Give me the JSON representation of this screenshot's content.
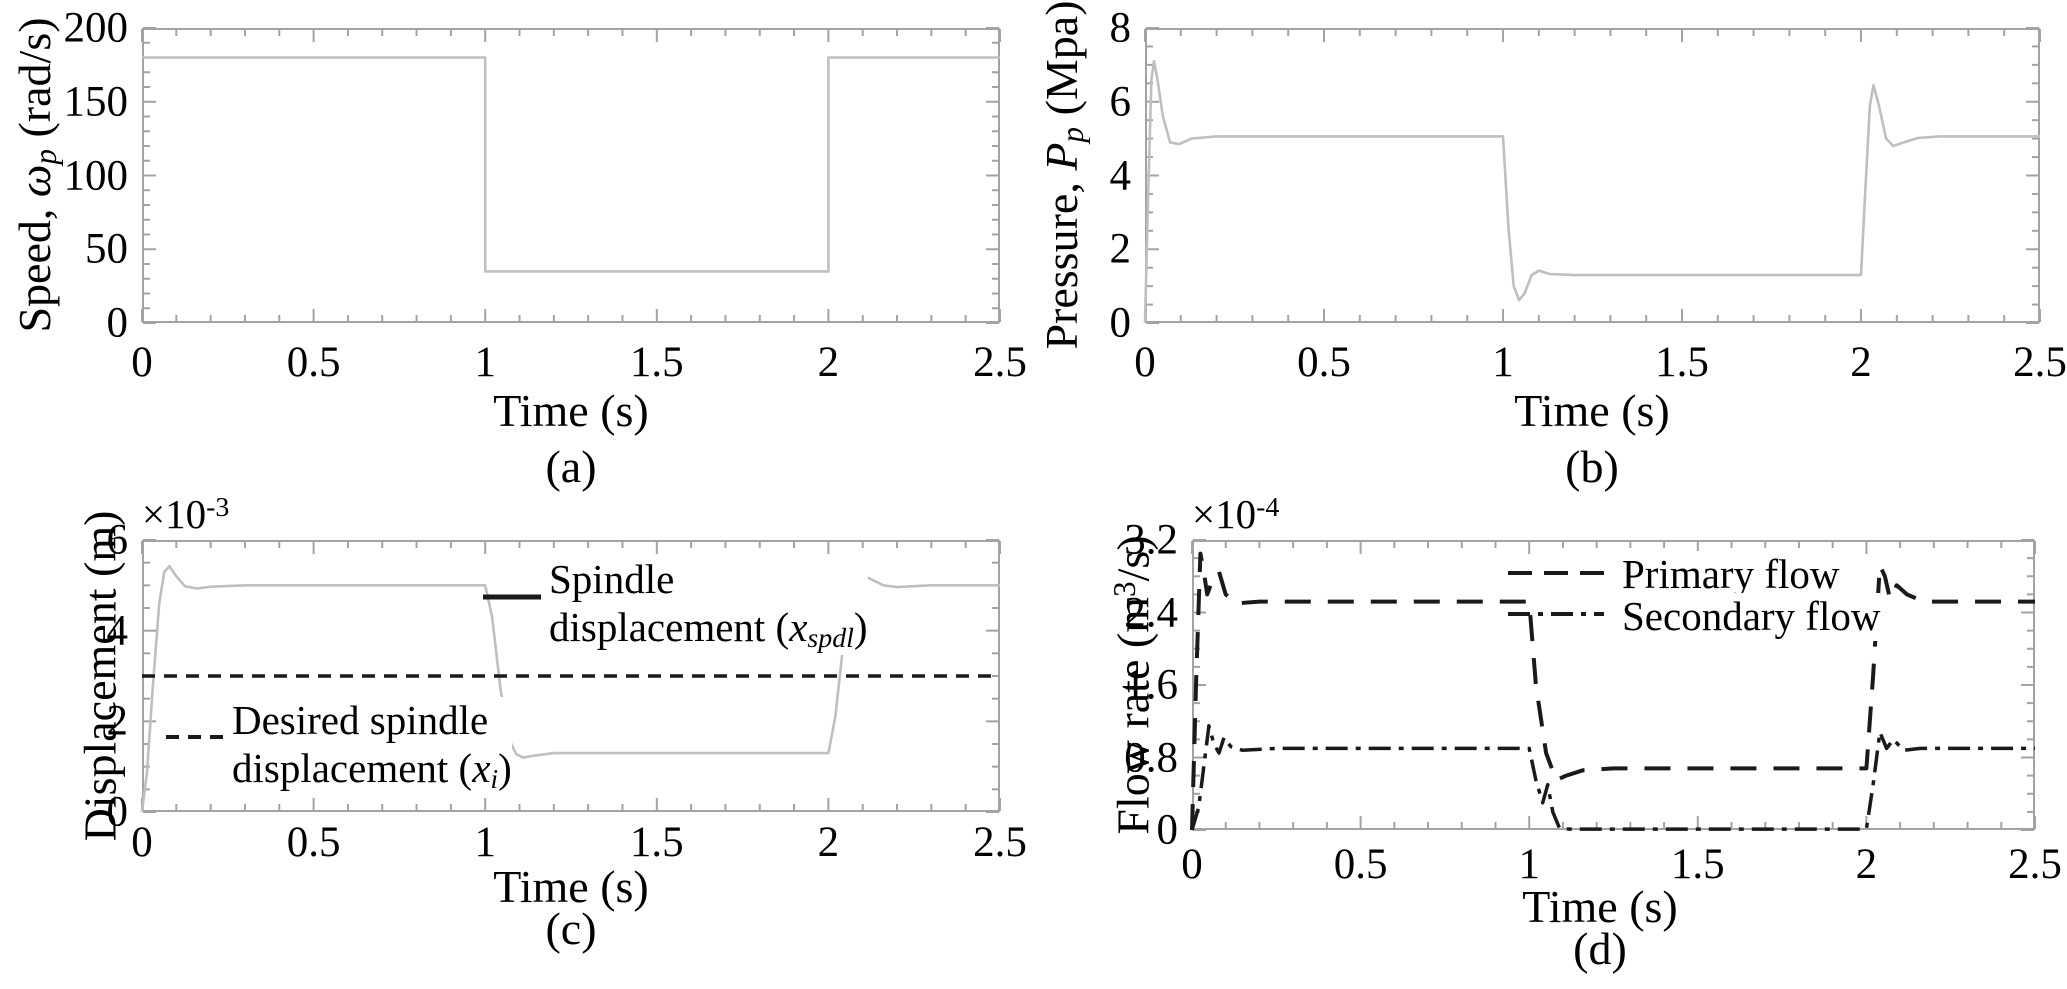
{
  "figure": {
    "background": "#ffffff",
    "frame_color": "#a3a3a3",
    "gray_line_color": "#bfbfbf",
    "black_line_color": "#1a1a1a",
    "text_color": "#000000"
  },
  "chart_data": [
    {
      "id": "a",
      "type": "line",
      "caption": "(a)",
      "xlabel": "Time (s)",
      "ylabel_parts": [
        {
          "t": "Speed, "
        },
        {
          "t": "ω",
          "i": 1
        },
        {
          "t": "p",
          "i": 1,
          "sub": 1
        },
        {
          "t": " (rad/s)"
        }
      ],
      "xlim": [
        0,
        2.5
      ],
      "ylim": [
        0,
        200
      ],
      "xticks": {
        "values": [
          0,
          0.5,
          1,
          1.5,
          2,
          2.5
        ],
        "labels": [
          "0",
          "0.5",
          "1",
          "1.5",
          "2",
          "2.5"
        ],
        "minor_step": 0.1
      },
      "yticks": {
        "values": [
          0,
          50,
          100,
          150,
          200
        ],
        "labels": [
          "0",
          "50",
          "100",
          "150",
          "200"
        ],
        "minor_step": 10
      },
      "grid": false,
      "series": [
        {
          "name": "pump_speed",
          "line": "solid",
          "color": "gray",
          "width": 2.6,
          "points": [
            [
              0,
              180
            ],
            [
              1,
              180
            ],
            [
              1,
              35
            ],
            [
              2,
              35
            ],
            [
              2,
              180
            ],
            [
              2.5,
              180
            ]
          ]
        }
      ]
    },
    {
      "id": "b",
      "type": "line",
      "caption": "(b)",
      "xlabel": "Time (s)",
      "ylabel_parts": [
        {
          "t": "Pressure, "
        },
        {
          "t": "P",
          "i": 1
        },
        {
          "t": "p",
          "i": 1,
          "sub": 1
        },
        {
          "t": " (Mpa)"
        }
      ],
      "xlim": [
        0,
        2.5
      ],
      "ylim": [
        0,
        8
      ],
      "xticks": {
        "values": [
          0,
          0.5,
          1,
          1.5,
          2,
          2.5
        ],
        "labels": [
          "0",
          "0.5",
          "1",
          "1.5",
          "2",
          "2.5"
        ],
        "minor_step": 0.1
      },
      "yticks": {
        "values": [
          0,
          2,
          4,
          6,
          8
        ],
        "labels": [
          "0",
          "2",
          "4",
          "6",
          "8"
        ],
        "minor_step": 0.5
      },
      "grid": false,
      "series": [
        {
          "name": "pump_pressure",
          "line": "solid",
          "color": "gray",
          "width": 2.6,
          "points": [
            [
              0,
              0
            ],
            [
              0.008,
              3.2
            ],
            [
              0.018,
              6.6
            ],
            [
              0.025,
              7.1
            ],
            [
              0.035,
              6.6
            ],
            [
              0.05,
              5.6
            ],
            [
              0.07,
              4.9
            ],
            [
              0.095,
              4.85
            ],
            [
              0.13,
              5.0
            ],
            [
              0.2,
              5.06
            ],
            [
              1.0,
              5.06
            ],
            [
              1.015,
              2.6
            ],
            [
              1.03,
              1.0
            ],
            [
              1.045,
              0.62
            ],
            [
              1.06,
              0.8
            ],
            [
              1.08,
              1.3
            ],
            [
              1.1,
              1.42
            ],
            [
              1.13,
              1.33
            ],
            [
              1.2,
              1.3
            ],
            [
              2.0,
              1.3
            ],
            [
              2.012,
              3.6
            ],
            [
              2.025,
              5.9
            ],
            [
              2.035,
              6.45
            ],
            [
              2.05,
              5.9
            ],
            [
              2.07,
              5.0
            ],
            [
              2.09,
              4.8
            ],
            [
              2.12,
              4.9
            ],
            [
              2.16,
              5.02
            ],
            [
              2.22,
              5.06
            ],
            [
              2.5,
              5.06
            ]
          ]
        }
      ]
    },
    {
      "id": "c",
      "type": "line",
      "caption": "(c)",
      "xlabel": "Time (s)",
      "ylabel_parts": [
        {
          "t": "Displacement (m)"
        }
      ],
      "scale_parts": [
        {
          "t": "×10"
        },
        {
          "t": "-3",
          "sup": 1
        }
      ],
      "xlim": [
        0,
        2.5
      ],
      "ylim": [
        0,
        6
      ],
      "xticks": {
        "values": [
          0,
          0.5,
          1,
          1.5,
          2,
          2.5
        ],
        "labels": [
          "0",
          "0.5",
          "1",
          "1.5",
          "2",
          "2.5"
        ],
        "minor_step": 0.1
      },
      "yticks": {
        "values": [
          0,
          2,
          4,
          6
        ],
        "labels": [
          "0",
          "2",
          "4",
          "6"
        ],
        "minor_step": 0.5
      },
      "grid": false,
      "series": [
        {
          "name": "spindle_displacement",
          "line": "solid",
          "color": "gray",
          "width": 2.6,
          "points": [
            [
              0,
              0
            ],
            [
              0.015,
              0.9
            ],
            [
              0.03,
              2.6
            ],
            [
              0.05,
              4.6
            ],
            [
              0.065,
              5.3
            ],
            [
              0.08,
              5.42
            ],
            [
              0.1,
              5.2
            ],
            [
              0.125,
              4.98
            ],
            [
              0.16,
              4.93
            ],
            [
              0.2,
              4.97
            ],
            [
              0.3,
              5.0
            ],
            [
              1.0,
              5.0
            ],
            [
              1.02,
              4.3
            ],
            [
              1.045,
              2.7
            ],
            [
              1.07,
              1.6
            ],
            [
              1.09,
              1.28
            ],
            [
              1.11,
              1.2
            ],
            [
              1.14,
              1.24
            ],
            [
              1.2,
              1.3
            ],
            [
              2.0,
              1.3
            ],
            [
              2.02,
              2.1
            ],
            [
              2.045,
              3.8
            ],
            [
              2.07,
              5.0
            ],
            [
              2.09,
              5.25
            ],
            [
              2.12,
              5.15
            ],
            [
              2.16,
              5.0
            ],
            [
              2.2,
              4.96
            ],
            [
              2.3,
              5.0
            ],
            [
              2.5,
              5.0
            ]
          ]
        },
        {
          "name": "desired_spindle_displacement",
          "line": "dashed",
          "color": "black",
          "width": 3.5,
          "dash": [
            13,
            9
          ],
          "points": [
            [
              0,
              3
            ],
            [
              2.5,
              3
            ]
          ]
        }
      ],
      "legend": [
        {
          "line": "solid",
          "color": "black",
          "parts": [
            {
              "t": "Spindle"
            },
            {
              "br": 1
            },
            {
              "t": "displacement ("
            },
            {
              "t": "x",
              "i": 1
            },
            {
              "t": "spdl",
              "i": 1,
              "sub": 1
            },
            {
              "t": ")"
            }
          ]
        },
        {
          "line": "dashed",
          "color": "black",
          "parts": [
            {
              "t": "Desired spindle"
            },
            {
              "br": 1
            },
            {
              "t": "displacement ("
            },
            {
              "t": "x",
              "i": 1
            },
            {
              "t": "i",
              "i": 1,
              "sub": 1
            },
            {
              "t": ")"
            }
          ]
        }
      ]
    },
    {
      "id": "d",
      "type": "line",
      "caption": "(d)",
      "xlabel": "Time (s)",
      "ylabel_parts": [
        {
          "t": "Flow rate (m"
        },
        {
          "t": "3",
          "sup": 1
        },
        {
          "t": "/s)"
        }
      ],
      "scale_parts": [
        {
          "t": "×10"
        },
        {
          "t": "-4",
          "sup": 1
        }
      ],
      "xlim": [
        0,
        2.5
      ],
      "ylim": [
        0,
        3.2
      ],
      "xticks": {
        "values": [
          0,
          0.5,
          1,
          1.5,
          2,
          2.5
        ],
        "labels": [
          "0",
          "0.5",
          "1",
          "1.5",
          "2",
          "2.5"
        ],
        "minor_step": 0.1
      },
      "yticks": {
        "values": [
          0,
          0.8,
          1.6,
          2.4,
          3.2
        ],
        "labels": [
          "0",
          "0.8",
          "1.6",
          "2.4",
          "3.2"
        ],
        "minor_step": 0.2
      },
      "grid": false,
      "series": [
        {
          "name": "primary_flow",
          "line": "dashed",
          "color": "black",
          "width": 4,
          "dash": [
            26,
            17
          ],
          "points": [
            [
              0,
              0
            ],
            [
              0.012,
              1.6
            ],
            [
              0.025,
              3.05
            ],
            [
              0.035,
              2.85
            ],
            [
              0.045,
              2.6
            ],
            [
              0.06,
              2.75
            ],
            [
              0.08,
              2.85
            ],
            [
              0.1,
              2.6
            ],
            [
              0.13,
              2.5
            ],
            [
              0.2,
              2.52
            ],
            [
              1.0,
              2.52
            ],
            [
              1.02,
              1.6
            ],
            [
              1.05,
              0.85
            ],
            [
              1.08,
              0.55
            ],
            [
              1.11,
              0.6
            ],
            [
              1.16,
              0.66
            ],
            [
              1.25,
              0.68
            ],
            [
              2.0,
              0.68
            ],
            [
              2.02,
              1.7
            ],
            [
              2.04,
              2.92
            ],
            [
              2.055,
              2.8
            ],
            [
              2.07,
              2.55
            ],
            [
              2.09,
              2.7
            ],
            [
              2.12,
              2.6
            ],
            [
              2.17,
              2.52
            ],
            [
              2.5,
              2.52
            ]
          ]
        },
        {
          "name": "secondary_flow",
          "line": "dashdot",
          "color": "black",
          "width": 3.5,
          "dash": [
            22,
            8,
            5,
            8
          ],
          "points": [
            [
              0,
              0
            ],
            [
              0.02,
              0.25
            ],
            [
              0.035,
              0.7
            ],
            [
              0.05,
              1.15
            ],
            [
              0.065,
              0.95
            ],
            [
              0.08,
              0.85
            ],
            [
              0.095,
              1.02
            ],
            [
              0.115,
              0.92
            ],
            [
              0.15,
              0.88
            ],
            [
              0.25,
              0.9
            ],
            [
              1.0,
              0.9
            ],
            [
              1.02,
              0.55
            ],
            [
              1.04,
              0.3
            ],
            [
              1.055,
              0.5
            ],
            [
              1.07,
              0.2
            ],
            [
              1.09,
              0.02
            ],
            [
              1.12,
              0.01
            ],
            [
              2.0,
              0.01
            ],
            [
              2.02,
              0.5
            ],
            [
              2.04,
              1.08
            ],
            [
              2.06,
              0.9
            ],
            [
              2.08,
              1.0
            ],
            [
              2.11,
              0.88
            ],
            [
              2.16,
              0.9
            ],
            [
              2.5,
              0.9
            ]
          ]
        }
      ],
      "legend": [
        {
          "line": "dashed",
          "color": "black",
          "parts": [
            {
              "t": "Primary flow"
            }
          ]
        },
        {
          "line": "dashdot",
          "color": "black",
          "parts": [
            {
              "t": "Secondary flow"
            }
          ]
        }
      ]
    }
  ]
}
